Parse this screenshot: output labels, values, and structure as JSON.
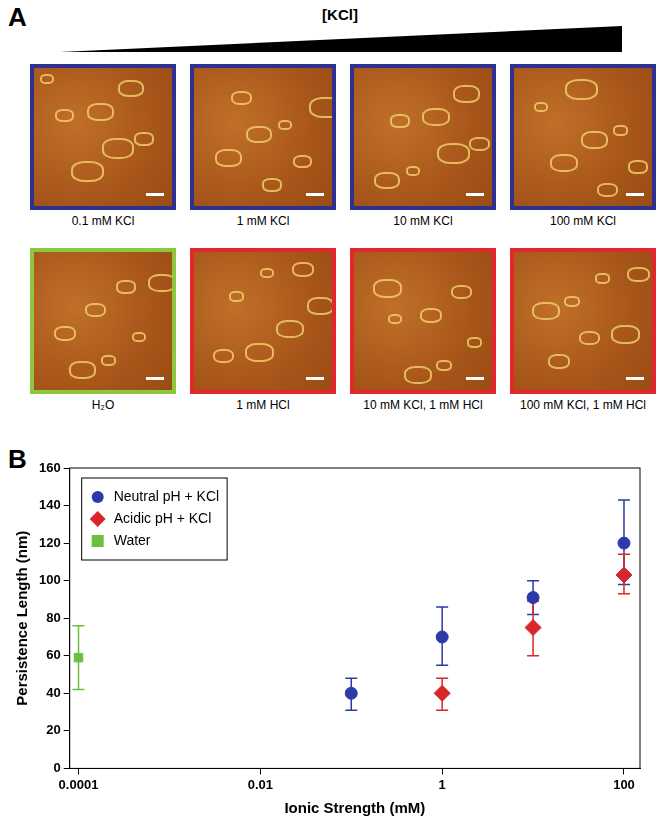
{
  "panel_a": {
    "label": "A",
    "gradient_label": "[KCl]",
    "images": [
      {
        "caption": "0.1 mM KCl",
        "color": "#2e3192"
      },
      {
        "caption": "1 mM KCl",
        "color": "#2e3192"
      },
      {
        "caption": "10 mM KCl",
        "color": "#2e3192"
      },
      {
        "caption": "100 mM KCl",
        "color": "#2e3192"
      },
      {
        "caption": "H₂O",
        "color": "#8dc63f"
      },
      {
        "caption": "1 mM HCl",
        "color": "#e3262d"
      },
      {
        "caption": "10 mM KCl, 1 mM HCl",
        "color": "#e3262d"
      },
      {
        "caption": "100 mM KCl, 1 mM HCl",
        "color": "#e3262d"
      }
    ]
  },
  "chart_data": {
    "panel_label": "B",
    "type": "scatter",
    "x_label": "Ionic Strength (mM)",
    "y_label": "Persistence Length (nm)",
    "log": "x",
    "xlim": [
      8e-05,
      150
    ],
    "xticks": [
      0.0001,
      0.01,
      1,
      100
    ],
    "ylim": [
      0,
      160
    ],
    "yticks": [
      0,
      20,
      40,
      60,
      80,
      100,
      120,
      140,
      160
    ],
    "grid": false,
    "legend": "upper left",
    "series": [
      {
        "name": "Neutral pH + KCl",
        "color": "#2b3aa8",
        "marker": "circle",
        "x": [
          0.1,
          1,
          10,
          100
        ],
        "values": [
          40,
          70,
          91,
          120
        ],
        "error_low": [
          31,
          55,
          82,
          98
        ],
        "error_high": [
          48,
          86,
          100,
          143
        ]
      },
      {
        "name": "Acidic pH + KCl",
        "color": "#d9262b",
        "marker": "diamond",
        "x": [
          1,
          10,
          100
        ],
        "values": [
          40,
          75,
          103
        ],
        "error_low": [
          31,
          60,
          93
        ],
        "error_high": [
          48,
          89,
          114
        ]
      },
      {
        "name": "Water",
        "color": "#6abf3f",
        "marker": "square",
        "x": [
          0.0001
        ],
        "values": [
          59
        ],
        "error_low": [
          42
        ],
        "error_high": [
          76
        ]
      }
    ]
  }
}
